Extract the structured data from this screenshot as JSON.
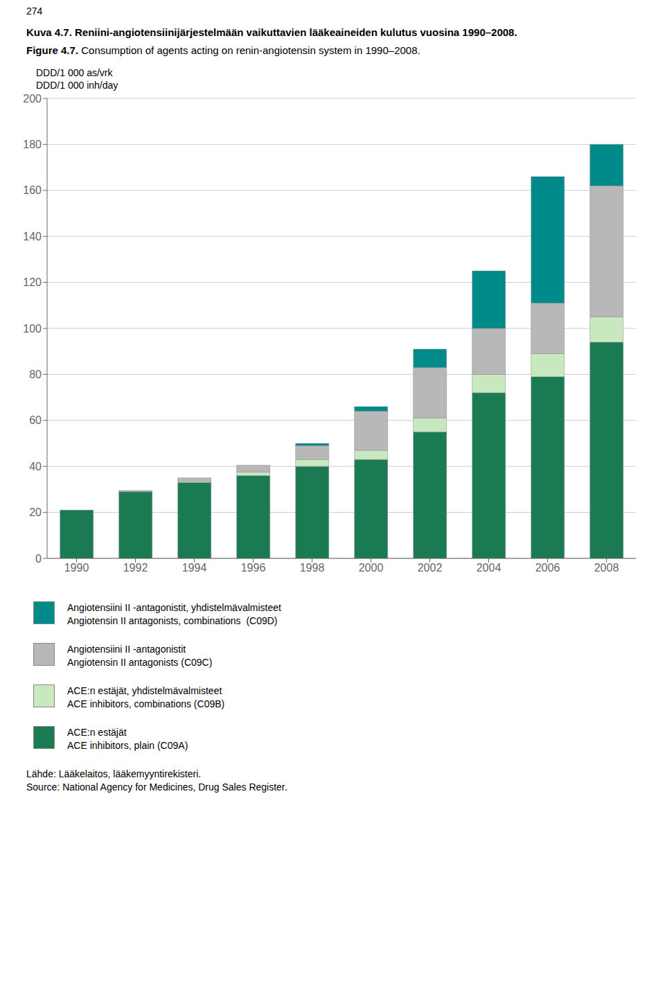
{
  "chart_data": {
    "type": "bar",
    "stacked": true,
    "title": "Kuva 4.7. Reniini-angiotensiinijärjestelmään vaikuttavien lääkeaineiden kulutus vuosina 1990–2008.",
    "subtitle": "Figure 4.7. Consumption of agents acting on renin-angiotensin system in 1990–2008.",
    "ylabel": "DDD/1 000 as/vrk\nDDD/1 000 inh/day",
    "annotations": [
      "274",
      "Lähde: Lääkelaitos, lääkemyyntirekisteri.",
      "Source: National Agency for Medicines, Drug Sales Register."
    ],
    "categories": [
      "1990",
      "1992",
      "1994",
      "1996",
      "1998",
      "2000",
      "2002",
      "2004",
      "2006",
      "2008"
    ],
    "series": [
      {
        "name": "ACE:n estäjät\nACE inhibitors, plain (C09A)",
        "color": "#1a7a52",
        "values": [
          21,
          29,
          33,
          36,
          40,
          43,
          55,
          72,
          79,
          94
        ]
      },
      {
        "name": "ACE:n estäjät, yhdistelmävalmisteet\nACE inhibitors, combinations (C09B)",
        "color": "#c8e8c0",
        "values": [
          0,
          0,
          0.5,
          1.5,
          3,
          4,
          6,
          8,
          10,
          11
        ]
      },
      {
        "name": "Angiotensiini II -antagonistit\nAngiotensin II antagonists (C09C)",
        "color": "#b8b8b8",
        "values": [
          0,
          0.5,
          1.5,
          3,
          6,
          17,
          22,
          20,
          22,
          57
        ]
      },
      {
        "name": "Angiotensiini II -antagonistit, yhdistelmävalmisteet\nAngiotensin II antagonists, combinations  (C09D)",
        "color": "#008b8b",
        "values": [
          0,
          0,
          0,
          0,
          1,
          2,
          8,
          25,
          55,
          18
        ]
      }
    ],
    "ylim": [
      0,
      200
    ],
    "yticks": [
      0,
      20,
      40,
      60,
      80,
      100,
      120,
      140,
      160,
      180,
      200
    ],
    "grid": true,
    "legend": "bottom"
  }
}
